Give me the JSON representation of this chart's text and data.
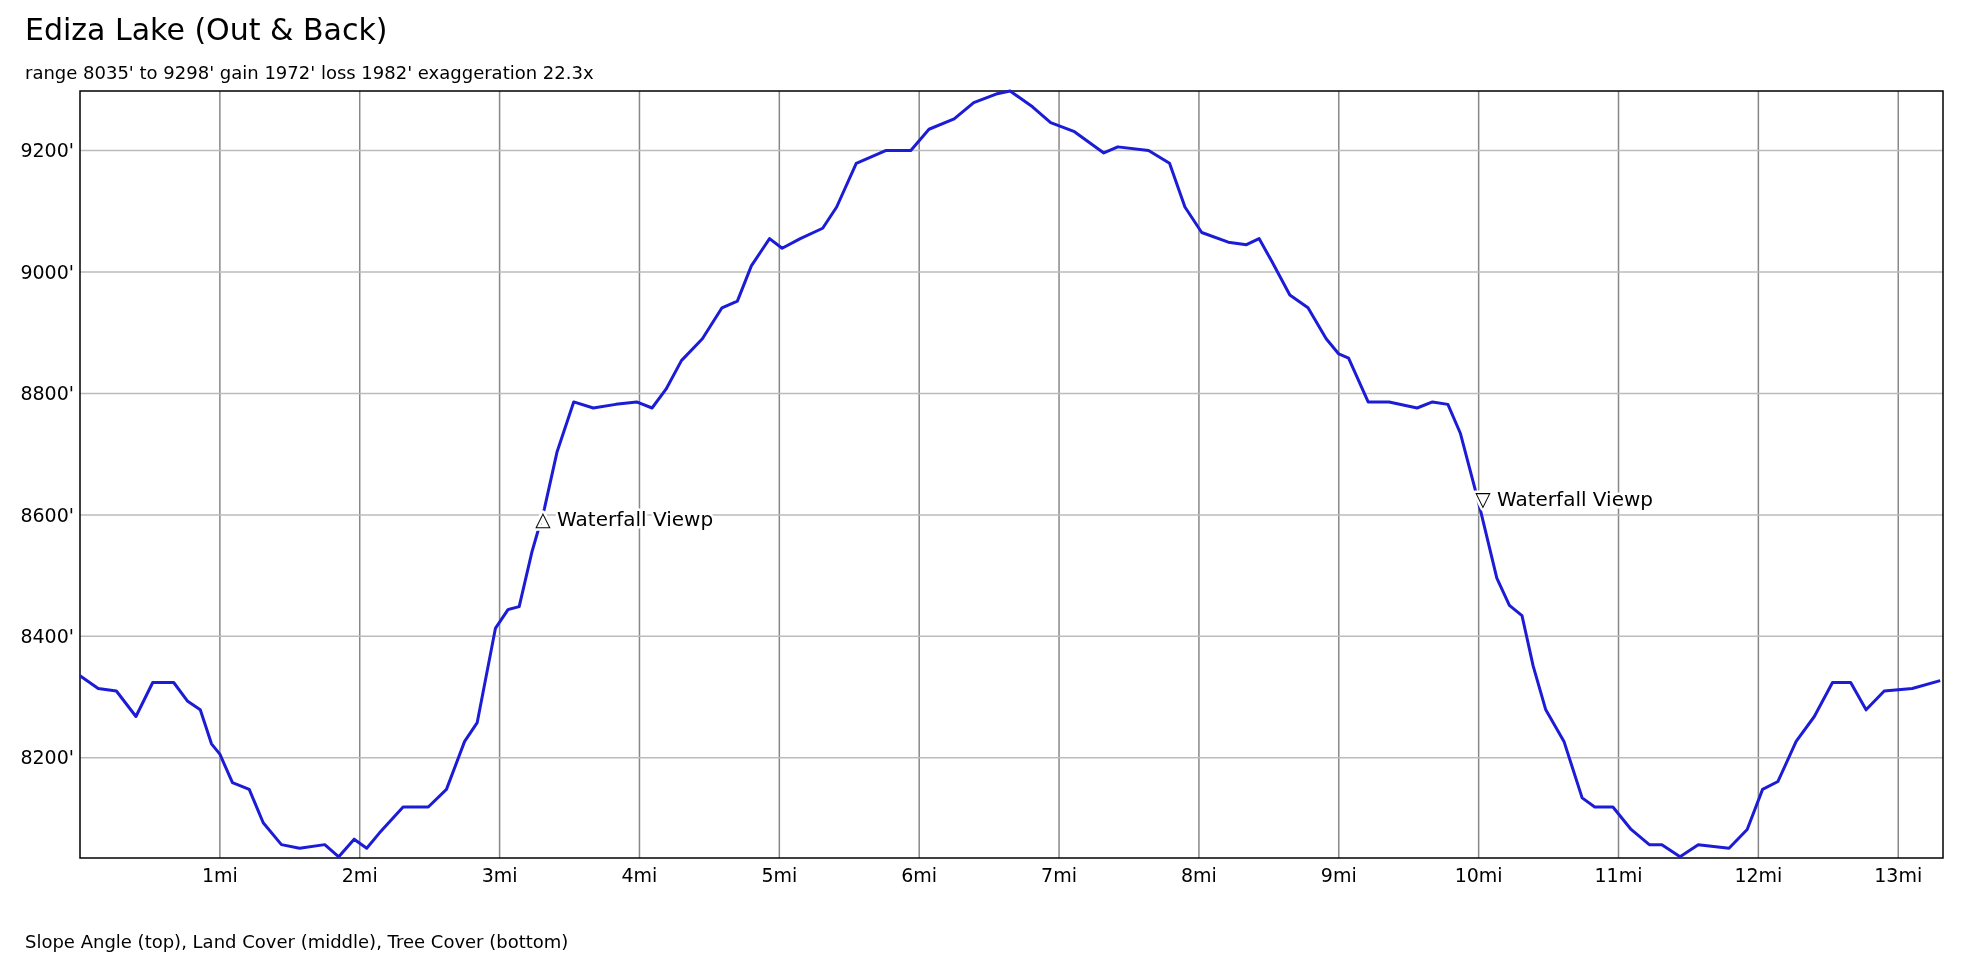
{
  "chart_data": {
    "type": "line",
    "title": "Ediza Lake (Out & Back)",
    "subtitle": "range 8035' to 9298'  gain 1972'  loss 1982'  exaggeration 22.3x",
    "x": [
      0,
      0.13,
      0.26,
      0.4,
      0.52,
      0.67,
      0.77,
      0.86,
      0.94,
      1.0,
      1.09,
      1.21,
      1.31,
      1.44,
      1.57,
      1.75,
      1.85,
      1.96,
      2.05,
      2.14,
      2.31,
      2.49,
      2.62,
      2.75,
      2.84,
      2.97,
      3.06,
      3.14,
      3.23,
      3.32,
      3.41,
      3.53,
      3.67,
      3.83,
      3.98,
      4.09,
      4.19,
      4.3,
      4.45,
      4.59,
      4.7,
      4.8,
      4.93,
      5.02,
      5.15,
      5.31,
      5.41,
      5.55,
      5.76,
      5.94,
      6.07,
      6.25,
      6.39,
      6.55,
      6.65,
      6.81,
      6.94,
      7.11,
      7.32,
      7.42,
      7.64,
      7.79,
      7.9,
      8.02,
      8.21,
      8.34,
      8.43,
      8.52,
      8.65,
      8.78,
      8.91,
      9.0,
      9.07,
      9.21,
      9.36,
      9.56,
      9.67,
      9.78,
      9.87,
      10.0,
      10.13,
      10.22,
      10.31,
      10.39,
      10.48,
      10.61,
      10.74,
      10.83,
      10.96,
      11.09,
      11.22,
      11.31,
      11.44,
      11.57,
      11.79,
      11.92,
      12.03,
      12.14,
      12.27,
      12.4,
      12.53,
      12.66,
      12.77,
      12.9,
      13.1,
      13.3
    ],
    "series": [
      {
        "color": "#1c1cd6",
        "values": [
          8335,
          8314,
          8310,
          8268,
          8324,
          8324,
          8293,
          8279,
          8223,
          8206,
          8159,
          8148,
          8093,
          8057,
          8051,
          8057,
          8037,
          8066,
          8051,
          8076,
          8119,
          8119,
          8148,
          8227,
          8258,
          8413,
          8444,
          8449,
          8538,
          8610,
          8703,
          8786,
          8776,
          8782,
          8786,
          8776,
          8807,
          8854,
          8890,
          8941,
          8952,
          9010,
          9055,
          9039,
          9055,
          9072,
          9107,
          9179,
          9200,
          9200,
          9235,
          9252,
          9279,
          9293,
          9298,
          9272,
          9246,
          9231,
          9196,
          9206,
          9200,
          9179,
          9107,
          9065,
          9049,
          9045,
          9055,
          9018,
          8962,
          8941,
          8890,
          8865,
          8858,
          8786,
          8786,
          8776,
          8786,
          8782,
          8734,
          8620,
          8496,
          8451,
          8434,
          8351,
          8279,
          8227,
          8134,
          8119,
          8119,
          8082,
          8057,
          8057,
          8037,
          8057,
          8051,
          8082,
          8148,
          8161,
          8227,
          8268,
          8324,
          8324,
          8279,
          8310,
          8314,
          8327
        ]
      }
    ],
    "xlim": [
      0,
      13.32
    ],
    "ylim": [
      8035,
      9298
    ],
    "xticks": [
      {
        "value": 1,
        "label": "1mi"
      },
      {
        "value": 2,
        "label": "2mi"
      },
      {
        "value": 3,
        "label": "3mi"
      },
      {
        "value": 4,
        "label": "4mi"
      },
      {
        "value": 5,
        "label": "5mi"
      },
      {
        "value": 6,
        "label": "6mi"
      },
      {
        "value": 7,
        "label": "7mi"
      },
      {
        "value": 8,
        "label": "8mi"
      },
      {
        "value": 9,
        "label": "9mi"
      },
      {
        "value": 10,
        "label": "10mi"
      },
      {
        "value": 11,
        "label": "11mi"
      },
      {
        "value": 12,
        "label": "12mi"
      },
      {
        "value": 13,
        "label": "13mi"
      }
    ],
    "yticks": [
      {
        "value": 8200,
        "label": "8200'"
      },
      {
        "value": 8400,
        "label": "8400'"
      },
      {
        "value": 8600,
        "label": "8600'"
      },
      {
        "value": 8800,
        "label": "8800'"
      },
      {
        "value": 9000,
        "label": "9000'"
      },
      {
        "value": 9200,
        "label": "9200'"
      }
    ],
    "grid": true,
    "annotations": [
      {
        "text": "△ Waterfall Viewp",
        "x": 3.32,
        "y": 8593
      },
      {
        "text": "▽ Waterfall Viewp",
        "x": 10.04,
        "y": 8626
      },
      "Slope Angle (top), Land Cover (middle), Tree Cover (bottom)"
    ]
  }
}
